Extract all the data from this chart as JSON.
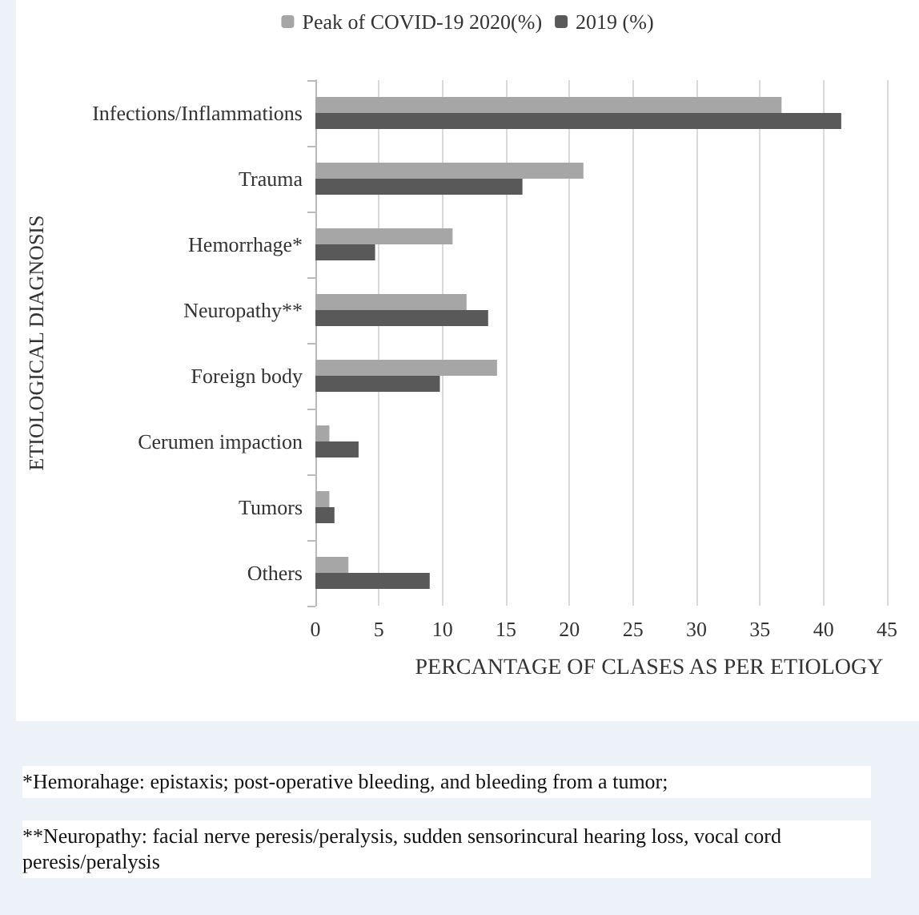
{
  "chart_data": {
    "type": "bar",
    "orientation": "horizontal",
    "xlabel": "PERCANTAGE OF CLASES AS PER ETIOLOGY",
    "ylabel": "ETIOLOGICAL DIAGNOSIS",
    "categories": [
      "Infections/Inflammations",
      "Trauma",
      "Hemorrhage*",
      "Neuropathy**",
      "Foreign body",
      "Cerumen impaction",
      "Tumors",
      "Others"
    ],
    "series": [
      {
        "name": "Peak of COVID-19 2020(%)",
        "color": "#a6a6a6",
        "values": [
          36.7,
          21.1,
          10.8,
          11.9,
          14.3,
          1.1,
          1.1,
          2.6
        ]
      },
      {
        "name": "2019 (%)",
        "color": "#595959",
        "values": [
          41.4,
          16.3,
          4.7,
          13.6,
          9.8,
          3.4,
          1.5,
          9.0
        ]
      }
    ],
    "xlim": [
      0,
      45
    ],
    "xticks": [
      0,
      5,
      10,
      15,
      20,
      25,
      30,
      35,
      40,
      45
    ],
    "grid": "x",
    "legend": "top",
    "annotations": [
      "*Hemorahage: epistaxis; post-operative bleeding, and bleeding from a tumor;",
      "**Neuropathy: facial nerve peresis/peralysis, sudden sensorincural hearing loss, vocal cord peresis/peralysis"
    ]
  }
}
